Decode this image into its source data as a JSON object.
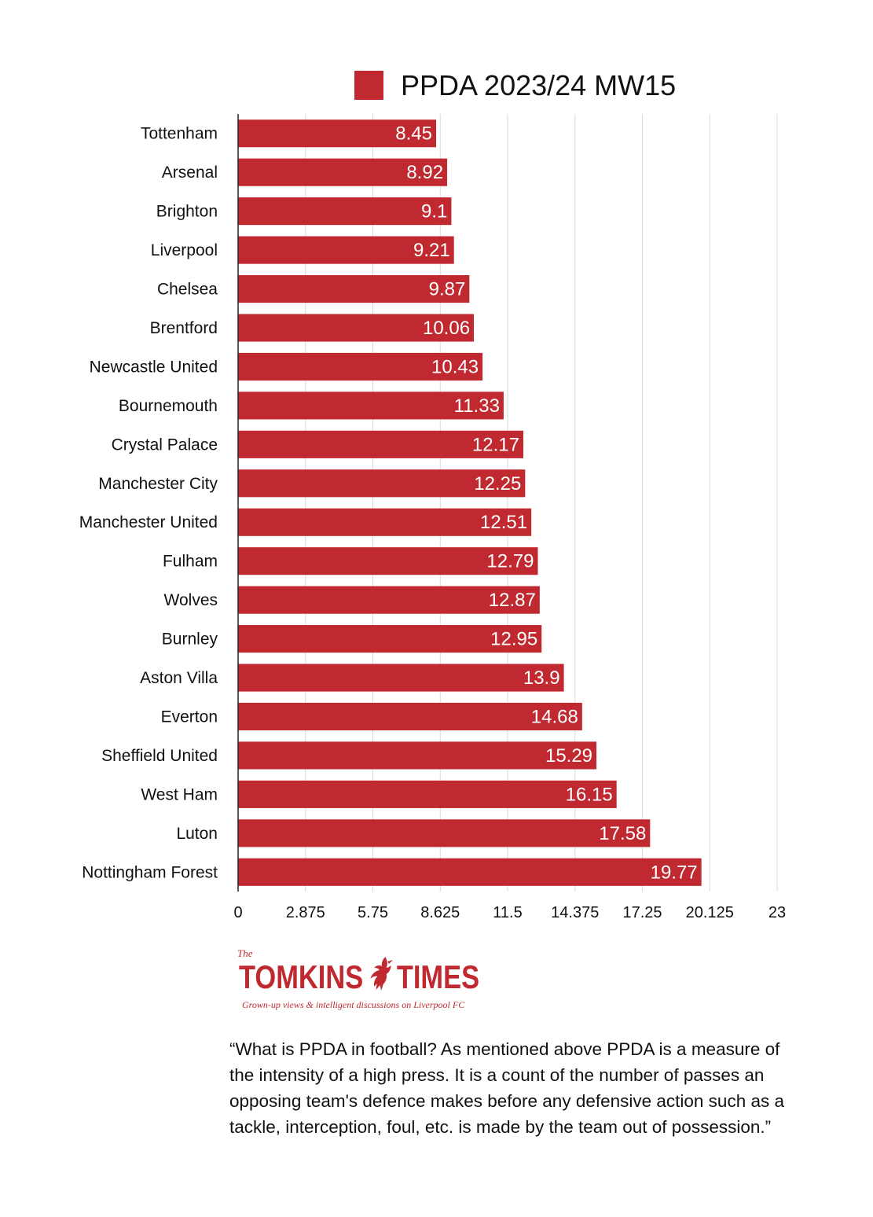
{
  "chart_data": {
    "type": "bar",
    "orientation": "horizontal",
    "legend_position": "top",
    "grid": true,
    "series": [
      {
        "name": "PPDA 2023/24 MW15",
        "color": "#c0292f",
        "values": [
          8.45,
          8.92,
          9.1,
          9.21,
          9.87,
          10.06,
          10.43,
          11.33,
          12.17,
          12.25,
          12.51,
          12.79,
          12.87,
          12.95,
          13.9,
          14.68,
          15.29,
          16.15,
          17.58,
          19.77
        ],
        "labels": [
          "8.45",
          "8.92",
          "9.1",
          "9.21",
          "9.87",
          "10.06",
          "10.43",
          "11.33",
          "12.17",
          "12.25",
          "12.51",
          "12.79",
          "12.87",
          "12.95",
          "13.9",
          "14.68",
          "15.29",
          "16.15",
          "17.58",
          "19.77"
        ]
      }
    ],
    "categories": [
      "Tottenham",
      "Arsenal",
      "Brighton",
      "Liverpool",
      "Chelsea",
      "Brentford",
      "Newcastle United",
      "Bournemouth",
      "Crystal Palace",
      "Manchester City",
      "Manchester United",
      "Fulham",
      "Wolves",
      "Burnley",
      "Aston Villa",
      "Everton",
      "Sheffield United",
      "West Ham",
      "Luton",
      "Nottingham Forest"
    ],
    "xlim": [
      0,
      23
    ],
    "x_ticks": [
      0,
      2.875,
      5.75,
      8.625,
      11.5,
      14.375,
      17.25,
      20.125,
      23
    ],
    "x_tick_labels": [
      "0",
      "2.875",
      "5.75",
      "8.625",
      "11.5",
      "14.375",
      "17.25",
      "20.125",
      "23"
    ]
  },
  "logo": {
    "the": "The",
    "word1": "TOMKINS",
    "word2": "TIMES",
    "tagline": "Grown-up views & intelligent discussions on Liverpool FC",
    "bird_icon": "liverbird-icon"
  },
  "quote": {
    "text": "“What is PPDA in football? As mentioned above PPDA is a measure of the intensity of a high press. It is a count of the number of passes an opposing team's defence makes before any defensive action such as a tackle, interception, foul, etc. is made by the team out of possession.”"
  },
  "colors": {
    "bar": "#c0292f",
    "grid": "#d9d9d9",
    "axis": "#222222"
  }
}
